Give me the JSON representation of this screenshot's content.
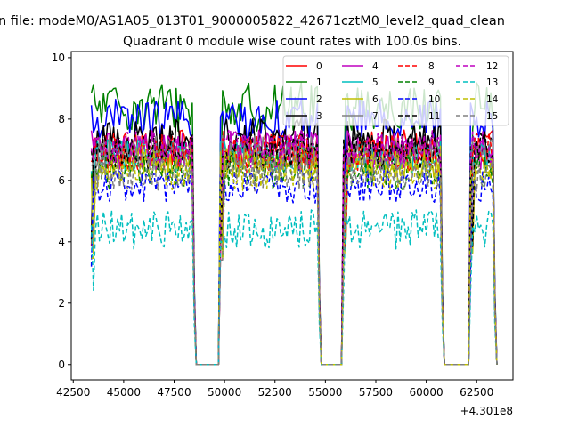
{
  "chart_data": {
    "type": "line",
    "suptitle": "n file: modeM0/AS1A05_013T01_9000005822_42671cztM0_level2_quad_clean",
    "title": "Quadrant 0 module wise count rates with 100.0s bins.",
    "xlabel": "",
    "ylabel": "",
    "x_offset_label": "+4.301e8",
    "xlim": [
      42400,
      64300
    ],
    "ylim": [
      -0.5,
      10.2
    ],
    "xticks": [
      42500,
      45000,
      47500,
      50000,
      52500,
      55000,
      57500,
      60000,
      62500
    ],
    "xtick_labels": [
      "42500",
      "45000",
      "47500",
      "50000",
      "52500",
      "55000",
      "57500",
      "60000",
      "62500"
    ],
    "yticks": [
      0,
      2,
      4,
      6,
      8,
      10
    ],
    "ytick_labels": [
      "0",
      "2",
      "4",
      "6",
      "8",
      "10"
    ],
    "grid": false,
    "legend_position": "top-right",
    "bin_seconds": 100,
    "data_segments": [
      [
        43400,
        48400
      ],
      [
        49800,
        54600
      ],
      [
        55900,
        60700
      ],
      [
        62200,
        63300
      ]
    ],
    "gap_value": 0,
    "series": [
      {
        "name": "0",
        "color": "#ff0000",
        "style": "solid",
        "level": 7.0,
        "noise": 0.4
      },
      {
        "name": "1",
        "color": "#008000",
        "style": "solid",
        "level": 8.4,
        "noise": 0.5
      },
      {
        "name": "2",
        "color": "#0000ff",
        "style": "solid",
        "level": 8.0,
        "noise": 0.4
      },
      {
        "name": "3",
        "color": "#000000",
        "style": "solid",
        "level": 7.4,
        "noise": 0.4
      },
      {
        "name": "4",
        "color": "#bf00bf",
        "style": "solid",
        "level": 7.0,
        "noise": 0.4
      },
      {
        "name": "5",
        "color": "#00bfbf",
        "style": "solid",
        "level": 6.8,
        "noise": 0.35
      },
      {
        "name": "6",
        "color": "#bfbf00",
        "style": "solid",
        "level": 6.6,
        "noise": 0.35
      },
      {
        "name": "7",
        "color": "#808080",
        "style": "solid",
        "level": 6.9,
        "noise": 0.35
      },
      {
        "name": "8",
        "color": "#ff0000",
        "style": "dashed",
        "level": 6.9,
        "noise": 0.4
      },
      {
        "name": "9",
        "color": "#008000",
        "style": "dashed",
        "level": 6.3,
        "noise": 0.4
      },
      {
        "name": "10",
        "color": "#0000ff",
        "style": "dashed",
        "level": 5.8,
        "noise": 0.35
      },
      {
        "name": "11",
        "color": "#000000",
        "style": "dashed",
        "level": 7.0,
        "noise": 0.4
      },
      {
        "name": "12",
        "color": "#bf00bf",
        "style": "dashed",
        "level": 7.0,
        "noise": 0.4
      },
      {
        "name": "13",
        "color": "#00bfbf",
        "style": "dashed",
        "level": 4.4,
        "noise": 0.4
      },
      {
        "name": "14",
        "color": "#bfbf00",
        "style": "dashed",
        "level": 6.3,
        "noise": 0.4
      },
      {
        "name": "15",
        "color": "#808080",
        "style": "dashed",
        "level": 6.2,
        "noise": 0.35
      }
    ]
  }
}
